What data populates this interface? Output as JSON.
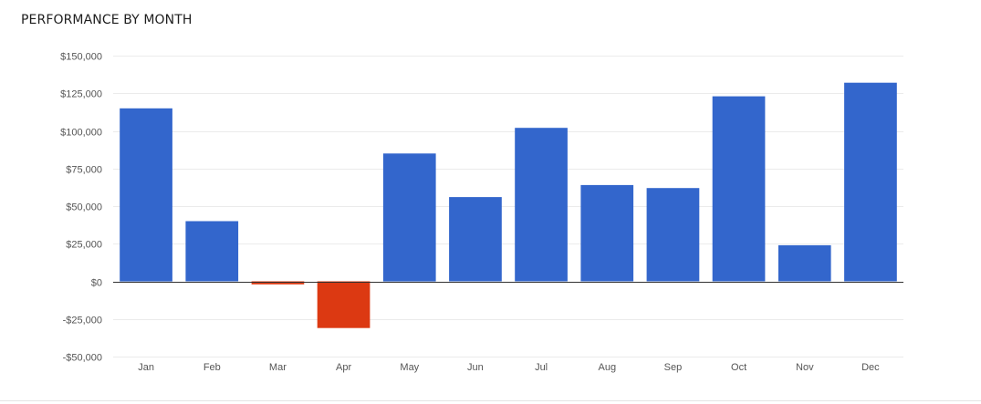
{
  "chart_data": {
    "type": "bar",
    "title": "PERFORMANCE BY MONTH",
    "xlabel": "",
    "ylabel": "",
    "categories": [
      "Jan",
      "Feb",
      "Mar",
      "Apr",
      "May",
      "Jun",
      "Jul",
      "Aug",
      "Sep",
      "Oct",
      "Nov",
      "Dec"
    ],
    "values": [
      115000,
      40000,
      -2000,
      -31000,
      85000,
      56000,
      102000,
      64000,
      62000,
      123000,
      24000,
      132000
    ],
    "ylim": [
      -50000,
      150000
    ],
    "yticks": [
      150000,
      125000,
      100000,
      75000,
      50000,
      25000,
      0,
      -25000,
      -50000
    ],
    "ytick_labels": [
      "$150,000",
      "$125,000",
      "$100,000",
      "$75,000",
      "$50,000",
      "$25,000",
      "$0",
      "-$25,000",
      "-$50,000"
    ],
    "grid": true,
    "legend": "none",
    "colors": {
      "positive": "#3366cc",
      "negative": "#dc3912",
      "gridline": "#ebebeb",
      "baseline": "#333333"
    }
  }
}
